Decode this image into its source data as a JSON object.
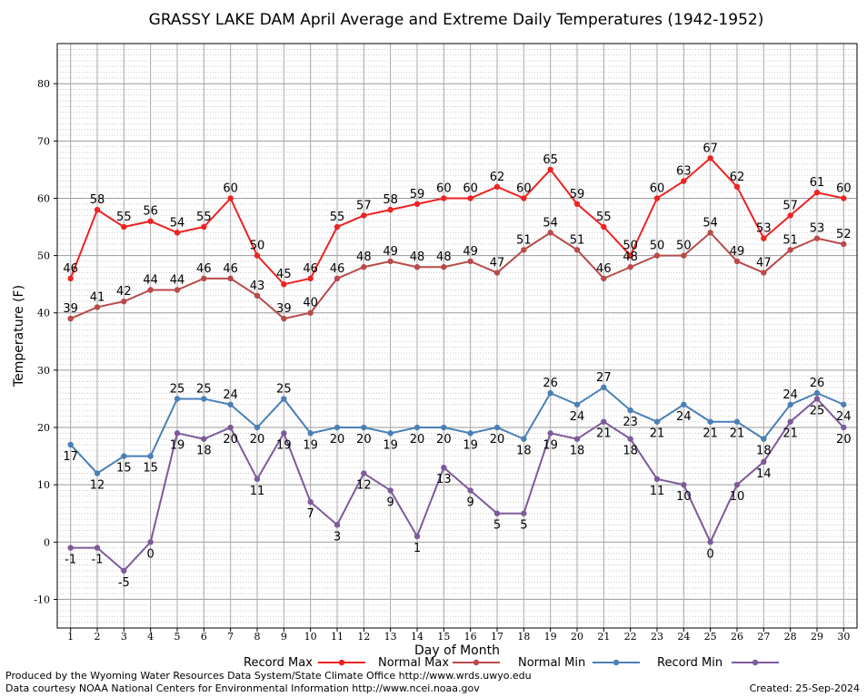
{
  "chart_data": {
    "type": "line",
    "title": "GRASSY LAKE DAM April Average and Extreme Daily Temperatures (1942-1952)",
    "xlabel": "Day of Month",
    "ylabel": "Temperature (F)",
    "xlim": [
      0.5,
      30.5
    ],
    "ylim": [
      -15,
      87
    ],
    "yticks": [
      -10,
      0,
      10,
      20,
      30,
      40,
      50,
      60,
      70,
      80
    ],
    "x": [
      1,
      2,
      3,
      4,
      5,
      6,
      7,
      8,
      9,
      10,
      11,
      12,
      13,
      14,
      15,
      16,
      17,
      18,
      19,
      20,
      21,
      22,
      23,
      24,
      25,
      26,
      27,
      28,
      29,
      30
    ],
    "grid": true,
    "legend_position": "bottom",
    "series": [
      {
        "name": "Record Max",
        "color": "#ee2222",
        "values": [
          46,
          58,
          55,
          56,
          54,
          55,
          60,
          50,
          45,
          46,
          55,
          57,
          58,
          59,
          60,
          60,
          62,
          60,
          65,
          59,
          55,
          50,
          60,
          63,
          67,
          62,
          53,
          57,
          61,
          60
        ]
      },
      {
        "name": "Normal Max",
        "color": "#b94a4a",
        "values": [
          39,
          41,
          42,
          44,
          44,
          46,
          46,
          43,
          39,
          40,
          46,
          48,
          49,
          48,
          48,
          49,
          47,
          51,
          54,
          51,
          46,
          48,
          50,
          50,
          54,
          49,
          47,
          51,
          53,
          52
        ]
      },
      {
        "name": "Normal Min",
        "color": "#4a7fb5",
        "values": [
          17,
          12,
          15,
          15,
          25,
          25,
          24,
          20,
          25,
          19,
          20,
          20,
          19,
          20,
          20,
          19,
          20,
          18,
          26,
          24,
          27,
          23,
          21,
          24,
          21,
          21,
          18,
          24,
          26,
          24
        ]
      },
      {
        "name": "Record Min",
        "color": "#7d5a9b",
        "values": [
          -1,
          -1,
          -5,
          0,
          19,
          18,
          20,
          11,
          19,
          7,
          3,
          12,
          9,
          1,
          13,
          9,
          5,
          5,
          19,
          18,
          21,
          18,
          11,
          10,
          0,
          10,
          14,
          21,
          25,
          20
        ]
      }
    ]
  },
  "footer": {
    "produced_by": "Produced by the Wyoming Water Resources Data System/State Climate Office http://www.wrds.uwyo.edu",
    "courtesy": "Data courtesy NOAA National Centers for Environmental Information http://www.ncei.noaa.gov",
    "created": "Created:  25-Sep-2024"
  }
}
